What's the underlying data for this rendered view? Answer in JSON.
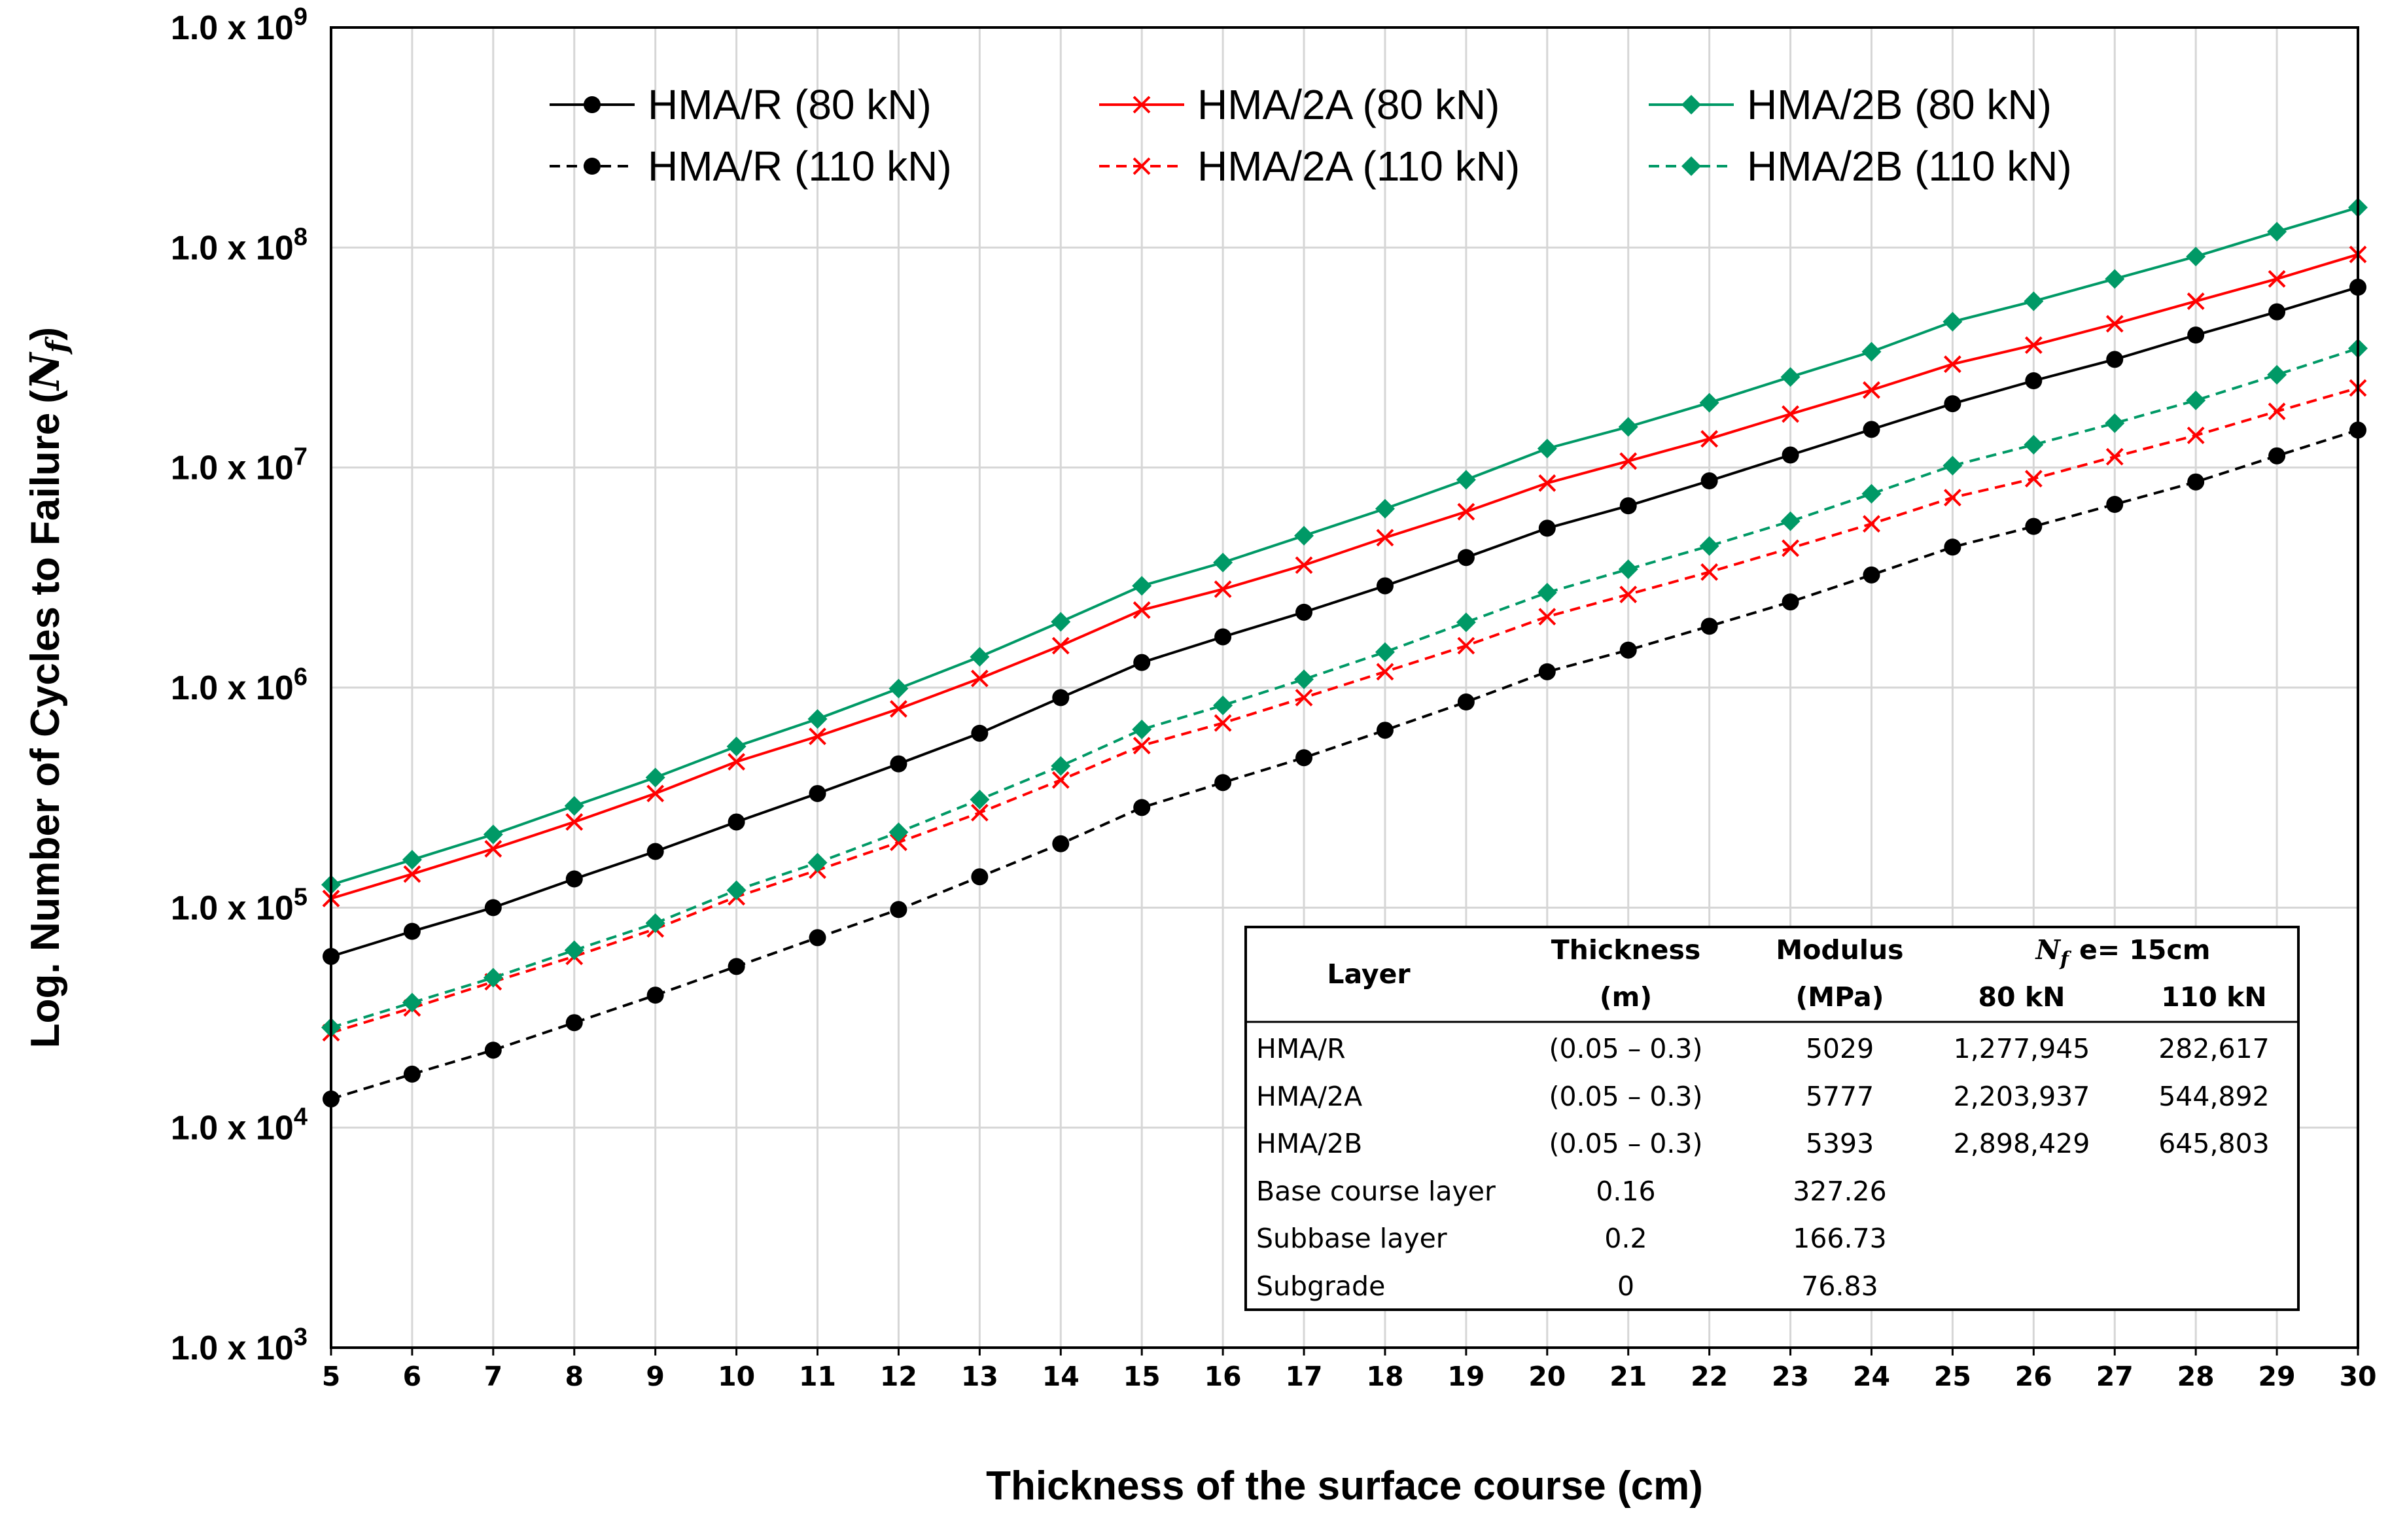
{
  "chart_data": {
    "type": "line",
    "xlabel": "Thickness of the surface course (cm)",
    "ylabel": "Log. Number of Cycles to Failure",
    "ylabel_symbol": "N",
    "ylabel_subscript": "f",
    "y_scale": "log",
    "xlim": [
      5,
      30
    ],
    "ylim": [
      1000,
      1000000000
    ],
    "grid": true,
    "x": [
      5,
      6,
      7,
      8,
      9,
      10,
      11,
      12,
      13,
      14,
      15,
      16,
      17,
      18,
      19,
      20,
      21,
      22,
      23,
      24,
      25,
      26,
      27,
      28,
      29,
      30
    ],
    "x_tick_labels": [
      "5",
      "6",
      "7",
      "8",
      "9",
      "10",
      "11",
      "12",
      "13",
      "14",
      "15",
      "16",
      "17",
      "18",
      "19",
      "20",
      "21",
      "22",
      "23",
      "24",
      "25",
      "26",
      "27",
      "28",
      "29",
      "30"
    ],
    "y_ticks": [
      {
        "value": 1000000000,
        "label": "1.0 x 10",
        "exp": "9"
      },
      {
        "value": 100000000,
        "label": "1.0 x 10",
        "exp": "8"
      },
      {
        "value": 10000000,
        "label": "1.0 x 10",
        "exp": "7"
      },
      {
        "value": 1000000,
        "label": "1.0 x 10",
        "exp": "6"
      },
      {
        "value": 100000,
        "label": "1.0 x 10",
        "exp": "5"
      },
      {
        "value": 10000,
        "label": "1.0 x 10",
        "exp": "4"
      },
      {
        "value": 1000,
        "label": "1.0 x 10",
        "exp": "3"
      }
    ],
    "legend_position": "top",
    "series": [
      {
        "name": "HMA/R (80 kN)",
        "color": "#000000",
        "dash": "solid",
        "marker": "circle",
        "values": [
          60000,
          78000,
          100000,
          135000,
          180000,
          245000,
          330000,
          450000,
          620000,
          900000,
          1300000,
          1700000,
          2200000,
          2900000,
          3900000,
          5300000,
          6700000,
          8700000,
          11400000,
          14900000,
          19500000,
          24800000,
          31000000,
          40000000,
          51000000,
          66000000
        ]
      },
      {
        "name": "HMA/2A (80 kN)",
        "color": "#ff0000",
        "dash": "solid",
        "marker": "x",
        "values": [
          110000,
          142000,
          185000,
          245000,
          330000,
          460000,
          600000,
          800000,
          1100000,
          1550000,
          2250000,
          2800000,
          3600000,
          4800000,
          6300000,
          8500000,
          10700000,
          13500000,
          17500000,
          22500000,
          29500000,
          36000000,
          45000000,
          57000000,
          72000000,
          93000000
        ]
      },
      {
        "name": "HMA/2B (80 kN)",
        "color": "#009966",
        "dash": "solid",
        "marker": "diamond",
        "values": [
          127000,
          165000,
          215000,
          290000,
          390000,
          540000,
          720000,
          990000,
          1380000,
          1990000,
          2900000,
          3700000,
          4900000,
          6500000,
          8800000,
          12200000,
          15300000,
          19700000,
          25800000,
          33600000,
          46000000,
          57000000,
          72000000,
          91000000,
          118000000,
          152000000
        ]
      },
      {
        "name": "HMA/R (110 kN)",
        "color": "#000000",
        "dash": "dashed",
        "marker": "circle",
        "values": [
          13500,
          17500,
          22500,
          30000,
          40000,
          54000,
          73000,
          98000,
          138000,
          195000,
          285000,
          370000,
          480000,
          640000,
          860000,
          1180000,
          1480000,
          1900000,
          2450000,
          3250000,
          4350000,
          5400000,
          6800000,
          8600000,
          11300000,
          14800000
        ]
      },
      {
        "name": "HMA/2A (110 kN)",
        "color": "#ff0000",
        "dash": "dashed",
        "marker": "x",
        "values": [
          27000,
          35000,
          46000,
          60000,
          80000,
          112000,
          148000,
          198000,
          270000,
          380000,
          545000,
          690000,
          900000,
          1180000,
          1550000,
          2100000,
          2650000,
          3350000,
          4300000,
          5550000,
          7300000,
          8900000,
          11200000,
          14000000,
          18000000,
          23000000
        ]
      },
      {
        "name": "HMA/2B (110 kN)",
        "color": "#009966",
        "dash": "dashed",
        "marker": "diamond",
        "values": [
          28500,
          37000,
          48000,
          64000,
          85000,
          120000,
          160000,
          220000,
          310000,
          440000,
          645000,
          830000,
          1090000,
          1450000,
          1980000,
          2700000,
          3450000,
          4400000,
          5700000,
          7600000,
          10200000,
          12700000,
          15900000,
          20200000,
          26400000,
          34800000
        ]
      }
    ],
    "table": {
      "headers": {
        "layer": "Layer",
        "thickness": "Thickness",
        "thickness_unit": "(m)",
        "modulus": "Modulus",
        "modulus_unit": "(MPa)",
        "nf_symbol": "N",
        "nf_subscript": "f",
        "nf_condition": "e= 15cm",
        "load1": "80 kN",
        "load2": "110 kN"
      },
      "rows": [
        {
          "layer": "HMA/R",
          "thickness": "(0.05 – 0.3)",
          "modulus": "5029",
          "nf80": "1,277,945",
          "nf110": "282,617"
        },
        {
          "layer": "HMA/2A",
          "thickness": "(0.05 – 0.3)",
          "modulus": "5777",
          "nf80": "2,203,937",
          "nf110": "544,892"
        },
        {
          "layer": "HMA/2B",
          "thickness": "(0.05 – 0.3)",
          "modulus": "5393",
          "nf80": "2,898,429",
          "nf110": "645,803"
        },
        {
          "layer": "Base course layer",
          "thickness": "0.16",
          "modulus": "327.26",
          "nf80": "",
          "nf110": ""
        },
        {
          "layer": "Subbase layer",
          "thickness": "0.2",
          "modulus": "166.73",
          "nf80": "",
          "nf110": ""
        },
        {
          "layer": "Subgrade",
          "thickness": "0",
          "modulus": "76.83",
          "nf80": "",
          "nf110": ""
        }
      ]
    }
  }
}
